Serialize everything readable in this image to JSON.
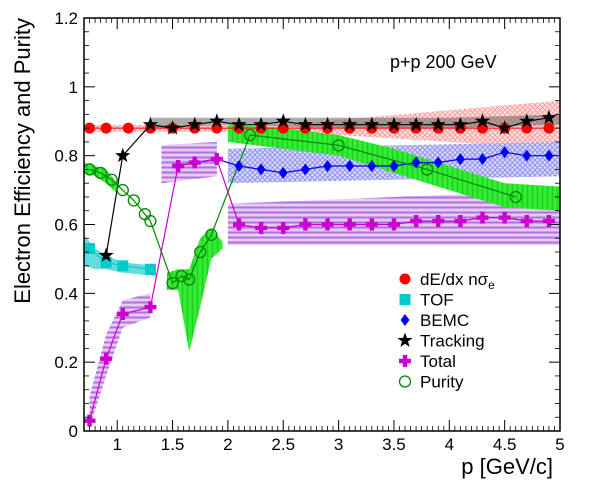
{
  "chart_data": {
    "type": "scatter",
    "annotation": "p+p 200 GeV",
    "xlabel": "p [GeV/c]",
    "ylabel": "Electron Efficiency and Purity",
    "xlim": [
      0.7,
      5.0
    ],
    "ylim": [
      0,
      1.2
    ],
    "x_ticks": [
      {
        "v": 1,
        "label": "1"
      },
      {
        "v": 1.5,
        "label": "1.5"
      },
      {
        "v": 2,
        "label": "2"
      },
      {
        "v": 2.5,
        "label": "2.5"
      },
      {
        "v": 3,
        "label": "3"
      },
      {
        "v": 3.5,
        "label": "3.5"
      },
      {
        "v": 4,
        "label": "4"
      },
      {
        "v": 4.5,
        "label": "4.5"
      },
      {
        "v": 5,
        "label": "5"
      }
    ],
    "y_ticks": [
      {
        "v": 0,
        "label": "0"
      },
      {
        "v": 0.2,
        "label": "0.2"
      },
      {
        "v": 0.4,
        "label": "0.4"
      },
      {
        "v": 0.6,
        "label": "0.6"
      },
      {
        "v": 0.8,
        "label": "0.8"
      },
      {
        "v": 1,
        "label": "1"
      },
      {
        "v": 1.2,
        "label": "1.2"
      }
    ],
    "legend_position": "bottom-right",
    "series": [
      {
        "name": "dE/dx nσe",
        "marker": "circle-filled",
        "color": "#ff0000",
        "band_color": "#ff8080",
        "line": false,
        "x": [
          0.75,
          0.9,
          1.1,
          1.3,
          1.5,
          1.7,
          1.9,
          2.1,
          2.3,
          2.5,
          2.7,
          2.9,
          3.1,
          3.3,
          3.5,
          3.7,
          3.9,
          4.1,
          4.3,
          4.5,
          4.7,
          4.9
        ],
        "y": [
          0.88,
          0.88,
          0.88,
          0.88,
          0.88,
          0.88,
          0.88,
          0.88,
          0.88,
          0.88,
          0.88,
          0.88,
          0.88,
          0.88,
          0.88,
          0.88,
          0.88,
          0.88,
          0.88,
          0.88,
          0.88,
          0.88
        ],
        "band": [
          {
            "x": [
              0.7,
              2.5
            ],
            "lo": [
              0.87,
              0.87
            ],
            "hi": [
              0.89,
              0.89
            ]
          },
          {
            "x": [
              2.5,
              5.0
            ],
            "lo": [
              0.87,
              0.82
            ],
            "hi": [
              0.89,
              0.96
            ]
          }
        ]
      },
      {
        "name": "TOF",
        "marker": "square",
        "color": "#00cccc",
        "band_color": "#80e6e6",
        "line": true,
        "x": [
          0.75,
          0.9,
          1.05,
          1.3
        ],
        "y": [
          0.53,
          0.49,
          0.48,
          0.47
        ],
        "band": [
          {
            "x": [
              0.7,
              0.8,
              0.9,
              1.05,
              1.35
            ],
            "lo": [
              0.48,
              0.47,
              0.47,
              0.46,
              0.45
            ],
            "hi": [
              0.57,
              0.53,
              0.51,
              0.49,
              0.48
            ]
          }
        ]
      },
      {
        "name": "BEMC",
        "marker": "diamond",
        "color": "#0000ff",
        "band_color": "#9999ff",
        "line": true,
        "x": [
          1.55,
          1.7,
          1.9,
          2.1,
          2.3,
          2.5,
          2.7,
          2.9,
          3.1,
          3.3,
          3.5,
          3.7,
          3.9,
          4.1,
          4.3,
          4.5,
          4.7,
          4.9
        ],
        "y": [
          0.77,
          0.78,
          0.79,
          0.77,
          0.76,
          0.75,
          0.76,
          0.77,
          0.77,
          0.77,
          0.77,
          0.78,
          0.78,
          0.79,
          0.79,
          0.81,
          0.8,
          0.8
        ],
        "band": [
          {
            "x": [
              1.4,
              1.9
            ],
            "lo": [
              0.73,
              0.74
            ],
            "hi": [
              0.83,
              0.84
            ]
          },
          {
            "x": [
              2.0,
              5.0
            ],
            "lo": [
              0.72,
              0.74
            ],
            "hi": [
              0.82,
              0.84
            ]
          }
        ]
      },
      {
        "name": "Tracking",
        "marker": "star",
        "color": "#000000",
        "band_color": "#555555",
        "line": true,
        "x": [
          0.9,
          1.05,
          1.3,
          1.5,
          1.7,
          1.9,
          2.1,
          2.3,
          2.5,
          2.7,
          2.9,
          3.1,
          3.3,
          3.5,
          3.7,
          3.9,
          4.1,
          4.3,
          4.5,
          4.7,
          4.9
        ],
        "y": [
          0.51,
          0.8,
          0.89,
          0.88,
          0.89,
          0.9,
          0.89,
          0.89,
          0.9,
          0.89,
          0.89,
          0.89,
          0.89,
          0.89,
          0.89,
          0.89,
          0.89,
          0.9,
          0.88,
          0.9,
          0.91
        ],
        "band": [
          {
            "x": [
              1.3,
              2.0,
              3.0,
              4.0,
              5.0
            ],
            "lo": [
              0.88,
              0.89,
              0.88,
              0.88,
              0.89
            ],
            "hi": [
              0.91,
              0.91,
              0.91,
              0.91,
              0.92
            ]
          }
        ]
      },
      {
        "name": "Total",
        "marker": "cross",
        "color": "#cc00cc",
        "band_color": "#c080e6",
        "line": true,
        "x": [
          0.75,
          0.9,
          1.05,
          1.3,
          1.55,
          1.7,
          1.9,
          2.1,
          2.3,
          2.5,
          2.7,
          2.9,
          3.1,
          3.3,
          3.5,
          3.7,
          3.9,
          4.1,
          4.3,
          4.5,
          4.7,
          4.9
        ],
        "y": [
          0.03,
          0.21,
          0.34,
          0.36,
          0.77,
          0.78,
          0.79,
          0.6,
          0.59,
          0.59,
          0.6,
          0.6,
          0.6,
          0.6,
          0.6,
          0.61,
          0.61,
          0.61,
          0.62,
          0.62,
          0.61,
          0.61
        ],
        "band": [
          {
            "x": [
              0.75,
              0.9,
              1.05,
              1.3
            ],
            "lo": [
              0.01,
              0.16,
              0.3,
              0.33
            ],
            "hi": [
              0.1,
              0.28,
              0.38,
              0.4
            ]
          },
          {
            "x": [
              1.4,
              1.9
            ],
            "lo": [
              0.72,
              0.74
            ],
            "hi": [
              0.83,
              0.84
            ]
          },
          {
            "x": [
              2.0,
              5.0
            ],
            "lo": [
              0.54,
              0.54
            ],
            "hi": [
              0.66,
              0.7
            ]
          }
        ]
      },
      {
        "name": "Purity",
        "marker": "circle-open",
        "color": "#008800",
        "band_color": "#33ee33",
        "line": true,
        "x": [
          0.75,
          0.85,
          0.95,
          1.05,
          1.15,
          1.25,
          1.3,
          1.5,
          1.58,
          1.65,
          1.75,
          1.85,
          2.2,
          3.0,
          3.8,
          4.6
        ],
        "y": [
          0.76,
          0.75,
          0.73,
          0.7,
          0.67,
          0.63,
          0.61,
          0.43,
          0.45,
          0.44,
          0.52,
          0.57,
          0.86,
          0.83,
          0.76,
          0.68
        ],
        "band": [
          {
            "x": [
              0.7,
              0.8,
              0.9,
              1.0
            ],
            "lo": [
              0.75,
              0.74,
              0.72,
              0.69
            ],
            "hi": [
              0.78,
              0.77,
              0.76,
              0.72
            ]
          },
          {
            "x": [
              1.45,
              1.55,
              1.65,
              1.75,
              1.85,
              1.95
            ],
            "lo": [
              0.41,
              0.41,
              0.23,
              0.36,
              0.5,
              0.53
            ],
            "hi": [
              0.46,
              0.47,
              0.47,
              0.56,
              0.59,
              0.55
            ]
          },
          {
            "x": [
              2.0,
              2.5,
              3.0,
              3.5,
              4.0,
              4.5,
              5.0
            ],
            "lo": [
              0.84,
              0.82,
              0.8,
              0.75,
              0.7,
              0.65,
              0.64
            ],
            "hi": [
              0.89,
              0.88,
              0.86,
              0.82,
              0.77,
              0.72,
              0.71
            ]
          }
        ]
      }
    ]
  }
}
